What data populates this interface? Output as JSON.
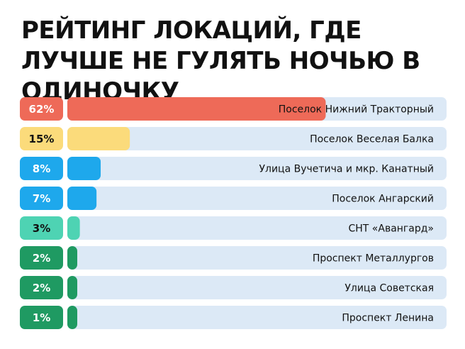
{
  "title": "РЕЙТИНГ ЛОКАЦИЙ, ГДЕ ЛУЧШЕ НЕ ГУЛЯТЬ НОЧЬЮ В ОДИНОЧКУ",
  "chart_data": {
    "type": "bar",
    "orientation": "horizontal",
    "title": "РЕЙТИНГ ЛОКАЦИЙ, ГДЕ ЛУЧШЕ НЕ ГУЛЯТЬ НОЧЬЮ В ОДИНОЧКУ",
    "xlabel": "",
    "ylabel": "",
    "xlim": [
      0,
      100
    ],
    "unit": "%",
    "grid": false,
    "legend": "none",
    "categories": [
      "Поселок Нижний Тракторный",
      "Поселок Веселая Балка",
      "Улица Вучетича и мкр. Канатный",
      "Поселок Ангарский",
      "СНТ «Авангард»",
      "Проспект Металлургов",
      "Улица Советская",
      "Проспект Ленина"
    ],
    "values": [
      62,
      15,
      8,
      7,
      3,
      2,
      2,
      1
    ],
    "labels": [
      "62%",
      "15%",
      "8%",
      "7%",
      "3%",
      "2%",
      "2%",
      "1%"
    ],
    "bar_colors": [
      "#EE6A58",
      "#FBDB7B",
      "#1EA8EC",
      "#1EA8EC",
      "#4ED3B3",
      "#1F9A62",
      "#1F9A62",
      "#1F9A62"
    ],
    "badge_colors": [
      "#EE6A58",
      "#FBDB7B",
      "#1EA8EC",
      "#1EA8EC",
      "#4ED3B3",
      "#1F9A62",
      "#1F9A62",
      "#1F9A62"
    ],
    "badge_text_colors": [
      "#FFFFFF",
      "#111111",
      "#FFFFFF",
      "#FFFFFF",
      "#111111",
      "#FFFFFF",
      "#FFFFFF",
      "#FFFFFF"
    ],
    "track_color": "#DCE9F6"
  }
}
